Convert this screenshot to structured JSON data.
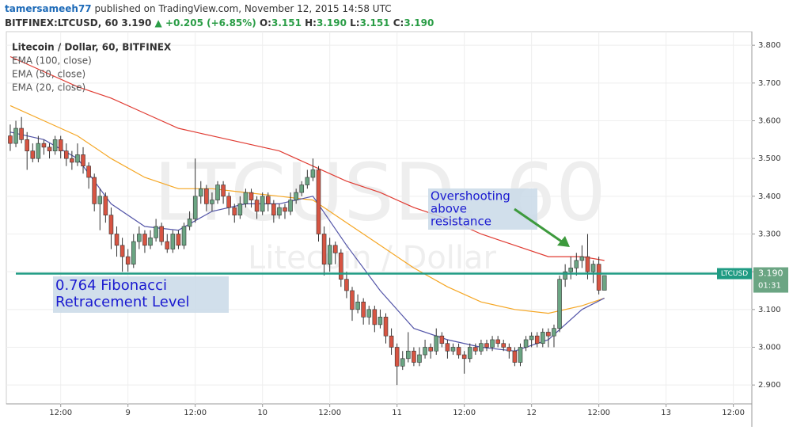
{
  "header": {
    "author": "tamersameeh77",
    "published": "published on TradingView.com, November 12, 2015 14:58 UTC",
    "symbol": "BITFINEX:LTCUSD, 60",
    "last": "3.190",
    "change": "▲ +0.205 (+6.85%)",
    "o_label": "O:",
    "o": "3.151",
    "h_label": "H:",
    "h": "3.190",
    "l_label": "L:",
    "l": "3.151",
    "c_label": "C:",
    "c": "3.190"
  },
  "chart_data": {
    "type": "candlestick",
    "legend_title": "Litecoin / Dollar, 60, BITFINEX",
    "watermark": "LTCUSD, 60",
    "watermark_sub": "Litecoin / Dollar",
    "up_color": "#6ba583",
    "down_color": "#d75442",
    "grid": true,
    "x": [
      -21,
      -20,
      -19,
      -18,
      -17,
      -16,
      -15,
      -14,
      -13,
      -12,
      -11,
      -10,
      -9,
      -8,
      -7,
      -6,
      -5,
      -4,
      -3,
      -2,
      -1,
      0,
      1,
      2,
      3,
      4,
      5,
      6,
      7,
      8,
      9,
      10,
      11,
      12,
      13,
      14,
      15,
      16,
      17,
      18,
      19,
      20,
      21,
      22,
      23,
      24,
      25,
      26,
      27,
      28,
      29,
      30,
      31,
      32,
      33,
      34,
      35,
      36,
      37,
      38,
      39,
      40,
      41,
      42,
      43,
      44,
      45,
      46,
      47,
      48,
      49,
      50,
      51,
      52,
      53,
      54,
      55,
      56,
      57,
      58,
      59,
      60,
      61,
      62,
      63,
      64,
      65,
      66,
      67,
      68,
      69,
      70,
      71,
      72,
      73,
      74,
      75,
      76,
      77,
      78,
      79,
      80,
      81,
      82,
      83,
      84,
      85
    ],
    "open": [
      3.56,
      3.54,
      3.58,
      3.55,
      3.52,
      3.5,
      3.54,
      3.53,
      3.52,
      3.55,
      3.52,
      3.5,
      3.49,
      3.51,
      3.48,
      3.45,
      3.38,
      3.4,
      3.35,
      3.3,
      3.27,
      3.24,
      3.22,
      3.28,
      3.3,
      3.27,
      3.29,
      3.32,
      3.28,
      3.26,
      3.3,
      3.27,
      3.32,
      3.34,
      3.4,
      3.42,
      3.38,
      3.39,
      3.43,
      3.4,
      3.37,
      3.35,
      3.38,
      3.41,
      3.39,
      3.36,
      3.4,
      3.38,
      3.35,
      3.37,
      3.36,
      3.39,
      3.41,
      3.43,
      3.45,
      3.47,
      3.3,
      3.22,
      3.27,
      3.25,
      3.18,
      3.15,
      3.1,
      3.12,
      3.08,
      3.1,
      3.06,
      3.08,
      3.03,
      3.0,
      2.95,
      2.97,
      2.99,
      2.96,
      2.98,
      3.0,
      2.99,
      3.03,
      3.01,
      2.99,
      3.0,
      2.98,
      2.97,
      3.0,
      2.99,
      3.01,
      3.0,
      3.02,
      3.01,
      3.0,
      2.99,
      2.96,
      3.0,
      3.02,
      3.03,
      3.01,
      3.04,
      3.03,
      3.05,
      3.18,
      3.2,
      3.21,
      3.23,
      3.24,
      3.2,
      3.22,
      3.151
    ],
    "high": [
      3.59,
      3.6,
      3.61,
      3.57,
      3.54,
      3.56,
      3.55,
      3.54,
      3.56,
      3.56,
      3.54,
      3.52,
      3.54,
      3.53,
      3.49,
      3.46,
      3.42,
      3.41,
      3.37,
      3.32,
      3.29,
      3.26,
      3.3,
      3.32,
      3.31,
      3.31,
      3.34,
      3.33,
      3.3,
      3.31,
      3.31,
      3.33,
      3.36,
      3.5,
      3.44,
      3.43,
      3.41,
      3.44,
      3.44,
      3.41,
      3.38,
      3.4,
      3.42,
      3.42,
      3.4,
      3.41,
      3.41,
      3.39,
      3.38,
      3.38,
      3.41,
      3.42,
      3.44,
      3.47,
      3.5,
      3.48,
      3.32,
      3.29,
      3.28,
      3.26,
      3.2,
      3.16,
      3.14,
      3.13,
      3.11,
      3.11,
      3.1,
      3.09,
      3.05,
      3.01,
      2.99,
      3.04,
      3.0,
      3.0,
      3.02,
      3.01,
      3.05,
      3.04,
      3.02,
      3.01,
      3.01,
      2.99,
      3.01,
      3.01,
      3.02,
      3.02,
      3.03,
      3.03,
      3.02,
      3.01,
      3.0,
      3.01,
      3.03,
      3.04,
      3.04,
      3.05,
      3.05,
      3.06,
      3.19,
      3.22,
      3.24,
      3.25,
      3.27,
      3.3,
      3.23,
      3.24,
      3.19
    ],
    "low": [
      3.52,
      3.53,
      3.54,
      3.47,
      3.49,
      3.49,
      3.51,
      3.5,
      3.51,
      3.5,
      3.48,
      3.47,
      3.48,
      3.46,
      3.42,
      3.36,
      3.31,
      3.33,
      3.26,
      3.24,
      3.2,
      3.2,
      3.21,
      3.26,
      3.25,
      3.26,
      3.28,
      3.27,
      3.25,
      3.25,
      3.26,
      3.26,
      3.31,
      3.33,
      3.38,
      3.36,
      3.36,
      3.38,
      3.38,
      3.35,
      3.33,
      3.34,
      3.37,
      3.37,
      3.34,
      3.35,
      3.36,
      3.33,
      3.34,
      3.34,
      3.35,
      3.38,
      3.4,
      3.42,
      3.44,
      3.28,
      3.19,
      3.2,
      3.22,
      3.16,
      3.13,
      3.07,
      3.09,
      3.06,
      3.06,
      3.04,
      3.05,
      3.01,
      2.98,
      2.9,
      2.94,
      2.96,
      2.95,
      2.95,
      2.97,
      2.97,
      2.98,
      3.0,
      2.97,
      2.98,
      2.97,
      2.93,
      2.96,
      2.98,
      2.98,
      2.99,
      2.99,
      3.0,
      2.99,
      2.97,
      2.95,
      2.95,
      2.99,
      3.0,
      3.0,
      3.0,
      3.0,
      3.0,
      3.04,
      3.16,
      3.18,
      3.19,
      3.21,
      3.18,
      3.17,
      3.14,
      3.151
    ],
    "close": [
      3.54,
      3.58,
      3.55,
      3.52,
      3.5,
      3.54,
      3.53,
      3.52,
      3.55,
      3.52,
      3.5,
      3.49,
      3.51,
      3.48,
      3.45,
      3.38,
      3.4,
      3.35,
      3.3,
      3.27,
      3.24,
      3.22,
      3.28,
      3.3,
      3.27,
      3.29,
      3.32,
      3.28,
      3.26,
      3.3,
      3.27,
      3.32,
      3.34,
      3.4,
      3.42,
      3.38,
      3.39,
      3.43,
      3.4,
      3.37,
      3.35,
      3.38,
      3.41,
      3.39,
      3.36,
      3.4,
      3.38,
      3.35,
      3.37,
      3.36,
      3.39,
      3.41,
      3.43,
      3.45,
      3.47,
      3.3,
      3.22,
      3.27,
      3.25,
      3.18,
      3.15,
      3.1,
      3.12,
      3.08,
      3.1,
      3.06,
      3.08,
      3.03,
      3.0,
      2.95,
      2.97,
      2.99,
      2.96,
      2.98,
      3.0,
      2.99,
      3.03,
      3.01,
      2.99,
      3.0,
      2.98,
      2.97,
      3.0,
      2.99,
      3.01,
      3.0,
      3.02,
      3.01,
      3.0,
      2.99,
      2.96,
      3.0,
      3.02,
      3.03,
      3.01,
      3.04,
      3.03,
      3.05,
      3.18,
      3.2,
      3.21,
      3.23,
      3.24,
      3.2,
      3.22,
      3.151,
      3.19
    ],
    "lines": [
      {
        "name": "EMA (100, close)",
        "color": "#e03b32",
        "x": [
          -21,
          -15,
          -9,
          -3,
          3,
          9,
          15,
          21,
          27,
          33,
          39,
          45,
          51,
          57,
          63,
          69,
          75,
          81,
          85
        ],
        "values": [
          3.77,
          3.73,
          3.69,
          3.66,
          3.62,
          3.58,
          3.56,
          3.54,
          3.52,
          3.48,
          3.44,
          3.41,
          3.37,
          3.34,
          3.3,
          3.27,
          3.24,
          3.24,
          3.23
        ]
      },
      {
        "name": "EMA (50, close)",
        "color": "#f5a623",
        "x": [
          -21,
          -15,
          -9,
          -3,
          3,
          9,
          15,
          21,
          27,
          33,
          39,
          45,
          51,
          57,
          63,
          69,
          75,
          81,
          85
        ],
        "values": [
          3.64,
          3.6,
          3.56,
          3.5,
          3.45,
          3.42,
          3.42,
          3.41,
          3.4,
          3.39,
          3.33,
          3.27,
          3.21,
          3.16,
          3.12,
          3.1,
          3.09,
          3.11,
          3.13
        ]
      },
      {
        "name": "EMA (20, close)",
        "color": "#5355a8",
        "x": [
          -21,
          -15,
          -9,
          -3,
          3,
          9,
          15,
          21,
          27,
          33,
          39,
          45,
          51,
          57,
          63,
          69,
          75,
          81,
          85
        ],
        "values": [
          3.57,
          3.55,
          3.5,
          3.38,
          3.32,
          3.31,
          3.36,
          3.38,
          3.38,
          3.4,
          3.27,
          3.15,
          3.05,
          3.02,
          3.0,
          2.99,
          3.02,
          3.1,
          3.13
        ]
      }
    ],
    "level": {
      "value": 3.195,
      "color": "#1f9b83"
    },
    "price_tag": {
      "symbol": "LTCUSD",
      "price": "3.190",
      "countdown": "01:31"
    },
    "annotations": [
      {
        "lines": [
          "Overshooting",
          "above",
          "resistance"
        ]
      },
      {
        "lines": [
          "0.764 Fibonacci",
          "Retracement Level"
        ]
      }
    ],
    "xlim": [
      -21.7,
      111.3
    ],
    "ylim": [
      2.85,
      3.836
    ],
    "xticks": [
      {
        "value": -12,
        "label": "12:00"
      },
      {
        "value": 0,
        "label": "9"
      },
      {
        "value": 12,
        "label": "12:00"
      },
      {
        "value": 24,
        "label": "10"
      },
      {
        "value": 36,
        "label": "12:00"
      },
      {
        "value": 48,
        "label": "11"
      },
      {
        "value": 60,
        "label": "12:00"
      },
      {
        "value": 72,
        "label": "12"
      },
      {
        "value": 84,
        "label": "12:00"
      },
      {
        "value": 96,
        "label": "13"
      },
      {
        "value": 108,
        "label": "12:00"
      }
    ],
    "yticks": [
      {
        "value": 2.9,
        "label": "2.900"
      },
      {
        "value": 3.0,
        "label": "3.000"
      },
      {
        "value": 3.1,
        "label": "3.100"
      },
      {
        "value": 3.2,
        "label": "3.200"
      },
      {
        "value": 3.3,
        "label": "3.300"
      },
      {
        "value": 3.4,
        "label": "3.400"
      },
      {
        "value": 3.5,
        "label": "3.500"
      },
      {
        "value": 3.6,
        "label": "3.600"
      },
      {
        "value": 3.7,
        "label": "3.700"
      },
      {
        "value": 3.8,
        "label": "3.800"
      }
    ]
  }
}
